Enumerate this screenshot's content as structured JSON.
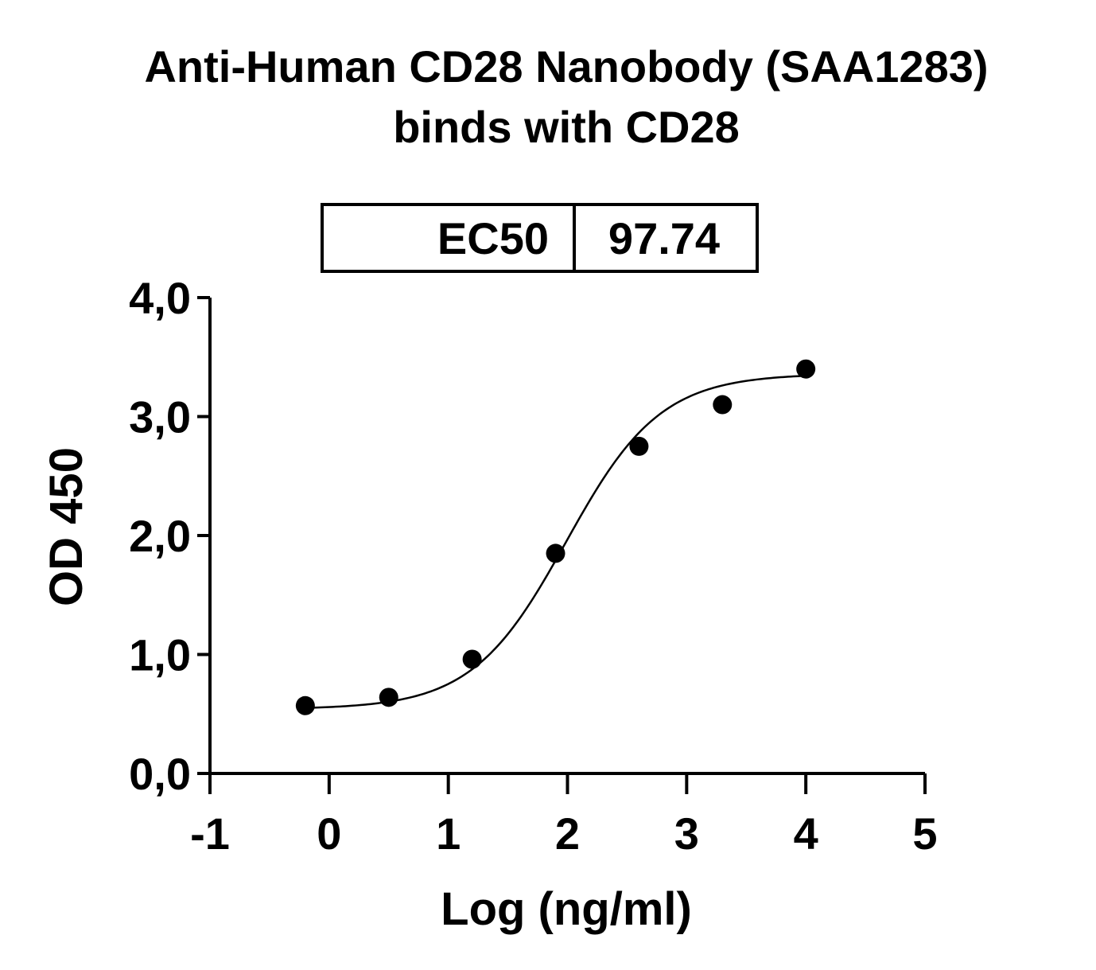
{
  "chart_data": {
    "type": "scatter",
    "title_line1": "Anti-Human CD28 Nanobody (SAA1283)",
    "title_line2": "binds with CD28",
    "xlabel": "Log (ng/ml)",
    "ylabel": "OD 450",
    "xlim": [
      -1,
      5
    ],
    "ylim": [
      0,
      4
    ],
    "x_ticks": [
      "-1",
      "0",
      "1",
      "2",
      "3",
      "4",
      "5"
    ],
    "y_ticks": [
      "0,0",
      "1,0",
      "2,0",
      "3,0",
      "4,0"
    ],
    "points": [
      {
        "x": -0.2,
        "y": 0.57
      },
      {
        "x": 0.5,
        "y": 0.64
      },
      {
        "x": 1.2,
        "y": 0.96
      },
      {
        "x": 1.9,
        "y": 1.85
      },
      {
        "x": 2.6,
        "y": 2.75
      },
      {
        "x": 3.3,
        "y": 3.1
      },
      {
        "x": 4.0,
        "y": 3.4
      }
    ],
    "fit_curve": {
      "model": "4PL",
      "bottom": 0.54,
      "top": 3.36,
      "logEC50": 1.99,
      "hill": 1.1,
      "x_range": [
        -0.2,
        4.0
      ]
    },
    "ec50_table": {
      "label": "EC50",
      "value": "97.74"
    },
    "grid": false,
    "legend": "none"
  }
}
